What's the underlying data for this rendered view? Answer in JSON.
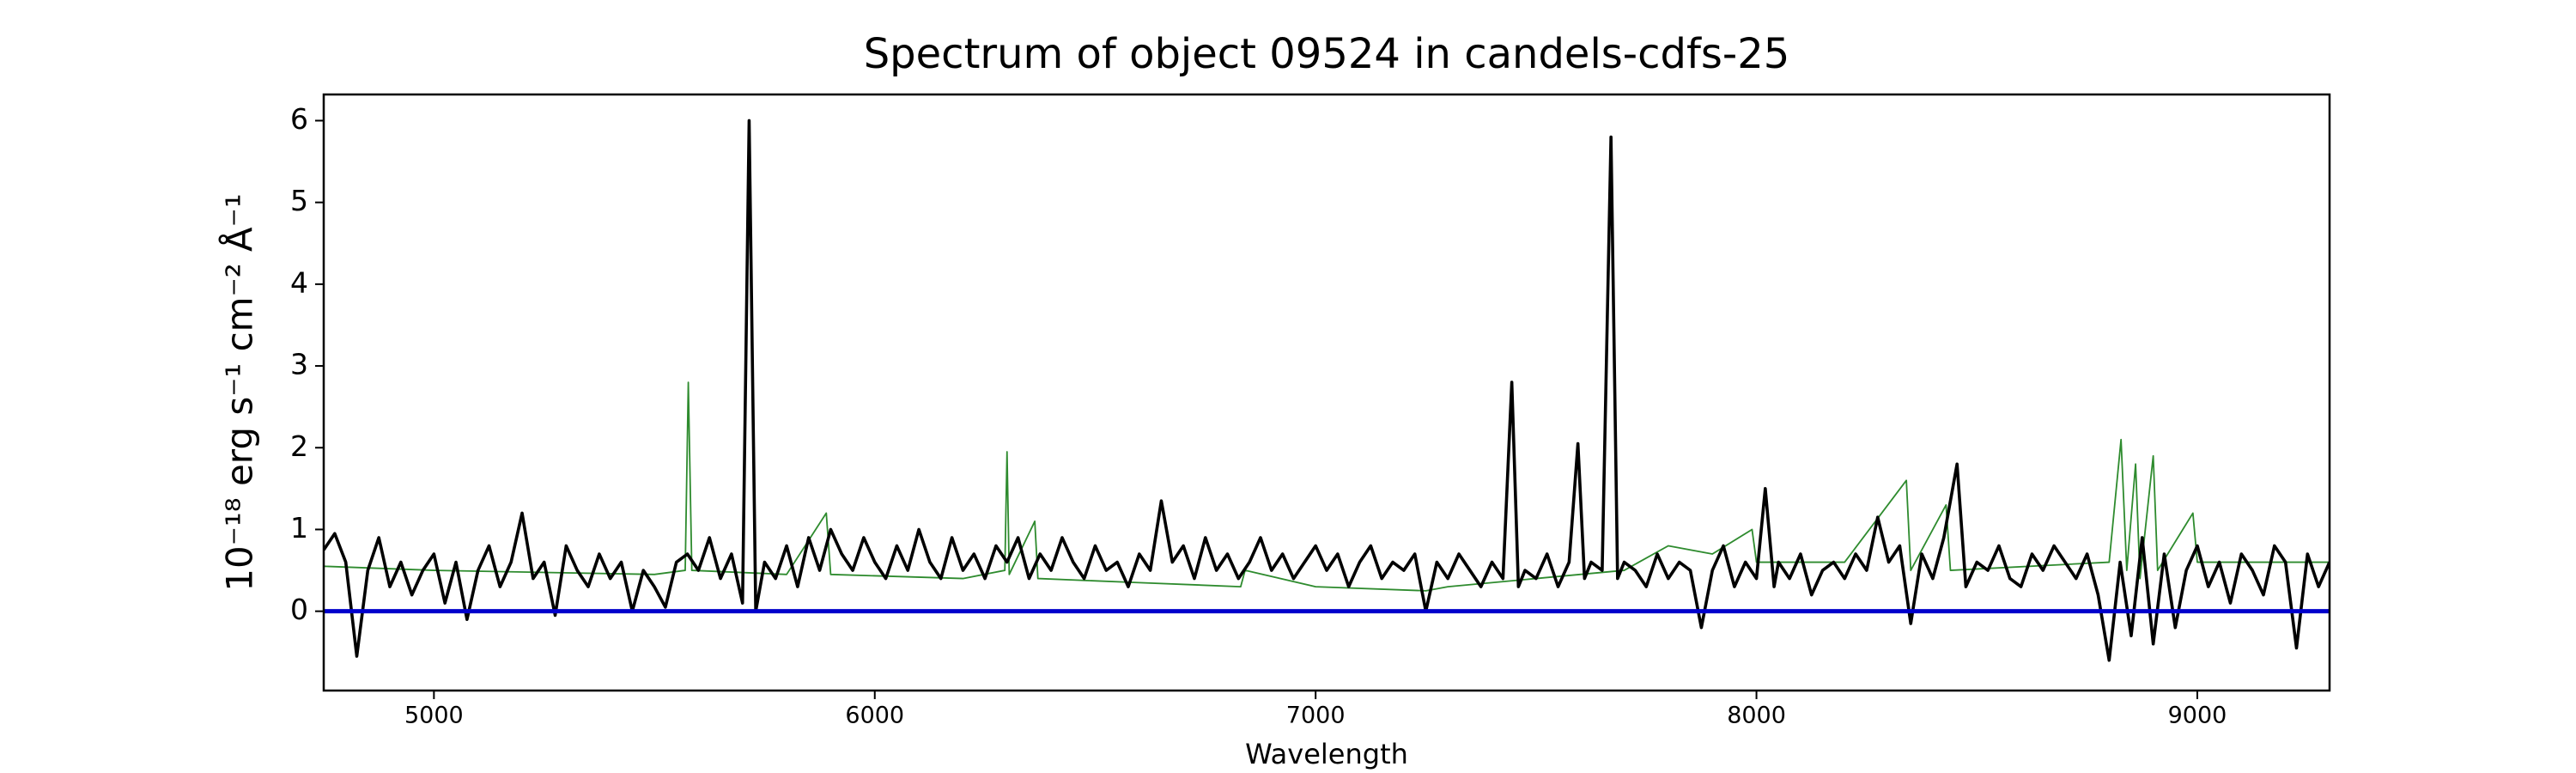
{
  "chart_data": {
    "type": "line",
    "title": "Spectrum of object 09524 in candels-cdfs-25",
    "x_label": "Wavelength",
    "y_label": "10⁻¹⁸ erg s⁻¹ cm⁻² Å⁻¹",
    "xlim": [
      4750,
      9300
    ],
    "ylim": [
      -0.97,
      6.32
    ],
    "xticks": [
      5000,
      6000,
      7000,
      8000,
      9000
    ],
    "yticks": [
      0,
      1,
      2,
      3,
      4,
      5,
      6
    ],
    "series": [
      {
        "color": "#2e8b2e",
        "width": 1.8,
        "x": [
          4750,
          5000,
          5500,
          5570,
          5577,
          5585,
          5800,
          5890,
          5900,
          6200,
          6295,
          6300,
          6305,
          6363,
          6370,
          6600,
          6830,
          6840,
          7000,
          7250,
          7300,
          7600,
          7700,
          7800,
          7900,
          7990,
          8000,
          8200,
          8340,
          8350,
          8430,
          8440,
          8800,
          8827,
          8840,
          8860,
          8870,
          8900,
          8910,
          8990,
          9000,
          9300
        ],
        "values": [
          0.55,
          0.5,
          0.45,
          0.5,
          2.8,
          0.5,
          0.45,
          1.2,
          0.45,
          0.4,
          0.5,
          1.95,
          0.45,
          1.1,
          0.4,
          0.35,
          0.3,
          0.5,
          0.3,
          0.25,
          0.3,
          0.45,
          0.5,
          0.8,
          0.7,
          1.0,
          0.6,
          0.6,
          1.6,
          0.5,
          1.3,
          0.5,
          0.6,
          2.1,
          0.5,
          1.8,
          0.4,
          1.9,
          0.5,
          1.2,
          0.6,
          0.6
        ]
      },
      {
        "color": "#000000",
        "width": 3.6,
        "x": [
          4750,
          4775,
          4800,
          4825,
          4850,
          4875,
          4900,
          4925,
          4950,
          4975,
          5000,
          5025,
          5050,
          5075,
          5100,
          5125,
          5150,
          5175,
          5200,
          5225,
          5250,
          5275,
          5300,
          5325,
          5350,
          5375,
          5400,
          5425,
          5450,
          5475,
          5500,
          5525,
          5550,
          5575,
          5600,
          5625,
          5650,
          5675,
          5700,
          5715,
          5730,
          5750,
          5775,
          5800,
          5825,
          5850,
          5875,
          5900,
          5925,
          5950,
          5975,
          6000,
          6025,
          6050,
          6075,
          6100,
          6125,
          6150,
          6175,
          6200,
          6225,
          6250,
          6275,
          6300,
          6325,
          6350,
          6375,
          6400,
          6425,
          6450,
          6475,
          6500,
          6525,
          6550,
          6575,
          6600,
          6625,
          6650,
          6675,
          6700,
          6725,
          6750,
          6775,
          6800,
          6825,
          6850,
          6875,
          6900,
          6925,
          6950,
          6975,
          7000,
          7025,
          7050,
          7075,
          7100,
          7125,
          7150,
          7175,
          7200,
          7225,
          7250,
          7275,
          7300,
          7325,
          7350,
          7375,
          7400,
          7425,
          7445,
          7460,
          7475,
          7500,
          7525,
          7550,
          7575,
          7595,
          7610,
          7625,
          7650,
          7670,
          7685,
          7700,
          7725,
          7750,
          7775,
          7800,
          7825,
          7850,
          7875,
          7900,
          7925,
          7950,
          7975,
          8000,
          8020,
          8040,
          8050,
          8075,
          8100,
          8125,
          8150,
          8175,
          8200,
          8225,
          8250,
          8275,
          8300,
          8325,
          8350,
          8375,
          8400,
          8425,
          8455,
          8475,
          8500,
          8525,
          8550,
          8575,
          8600,
          8625,
          8650,
          8675,
          8700,
          8725,
          8750,
          8775,
          8800,
          8825,
          8850,
          8875,
          8900,
          8925,
          8950,
          8975,
          9000,
          9025,
          9050,
          9075,
          9100,
          9125,
          9150,
          9175,
          9200,
          9225,
          9250,
          9275,
          9300
        ],
        "values": [
          0.75,
          0.95,
          0.6,
          -0.55,
          0.5,
          0.9,
          0.3,
          0.6,
          0.2,
          0.5,
          0.7,
          0.1,
          0.6,
          -0.1,
          0.5,
          0.8,
          0.3,
          0.6,
          1.2,
          0.4,
          0.6,
          -0.05,
          0.8,
          0.5,
          0.3,
          0.7,
          0.4,
          0.6,
          0.0,
          0.5,
          0.3,
          0.05,
          0.6,
          0.7,
          0.5,
          0.9,
          0.4,
          0.7,
          0.1,
          6.0,
          0.0,
          0.6,
          0.4,
          0.8,
          0.3,
          0.9,
          0.5,
          1.0,
          0.7,
          0.5,
          0.9,
          0.6,
          0.4,
          0.8,
          0.5,
          1.0,
          0.6,
          0.4,
          0.9,
          0.5,
          0.7,
          0.4,
          0.8,
          0.6,
          0.9,
          0.4,
          0.7,
          0.5,
          0.9,
          0.6,
          0.4,
          0.8,
          0.5,
          0.6,
          0.3,
          0.7,
          0.5,
          1.35,
          0.6,
          0.8,
          0.4,
          0.9,
          0.5,
          0.7,
          0.4,
          0.6,
          0.9,
          0.5,
          0.7,
          0.4,
          0.6,
          0.8,
          0.5,
          0.7,
          0.3,
          0.6,
          0.8,
          0.4,
          0.6,
          0.5,
          0.7,
          0.0,
          0.6,
          0.4,
          0.7,
          0.5,
          0.3,
          0.6,
          0.4,
          2.8,
          0.3,
          0.5,
          0.4,
          0.7,
          0.3,
          0.6,
          2.05,
          0.4,
          0.6,
          0.5,
          5.8,
          0.4,
          0.6,
          0.5,
          0.3,
          0.7,
          0.4,
          0.6,
          0.5,
          -0.2,
          0.5,
          0.8,
          0.3,
          0.6,
          0.4,
          1.5,
          0.3,
          0.6,
          0.4,
          0.7,
          0.2,
          0.5,
          0.6,
          0.4,
          0.7,
          0.5,
          1.15,
          0.6,
          0.8,
          -0.15,
          0.7,
          0.4,
          0.9,
          1.8,
          0.3,
          0.6,
          0.5,
          0.8,
          0.4,
          0.3,
          0.7,
          0.5,
          0.8,
          0.6,
          0.4,
          0.7,
          0.2,
          -0.6,
          0.6,
          -0.3,
          0.9,
          -0.4,
          0.7,
          -0.2,
          0.5,
          0.8,
          0.3,
          0.6,
          0.1,
          0.7,
          0.5,
          0.2,
          0.8,
          0.6,
          -0.45,
          0.7,
          0.3,
          0.6
        ]
      },
      {
        "color": "#0000cc",
        "width": 5,
        "x": [
          4750,
          9300
        ],
        "values": [
          0,
          0
        ]
      }
    ]
  }
}
